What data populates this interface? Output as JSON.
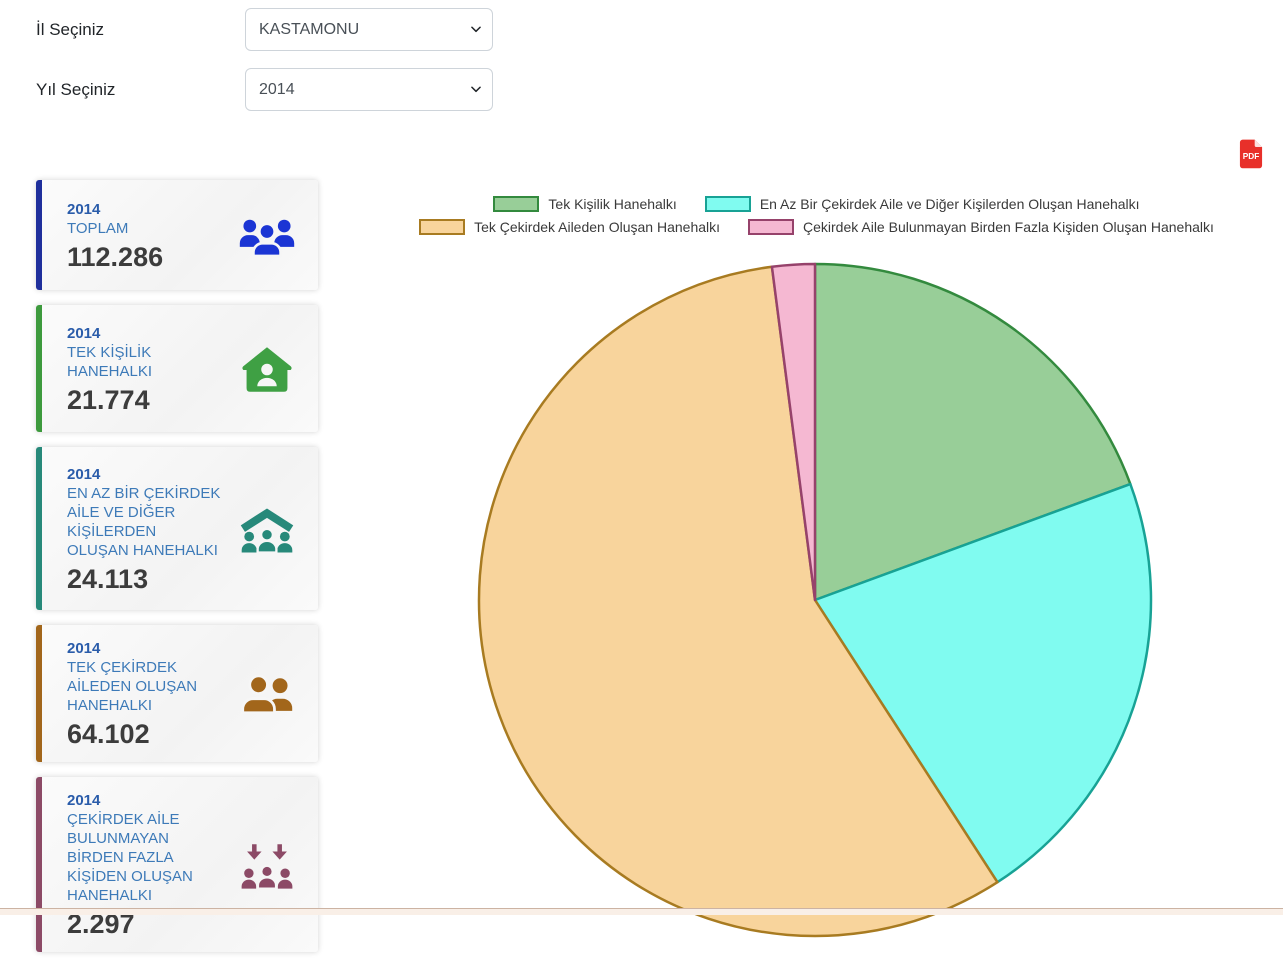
{
  "filters": {
    "province_label": "İl Seçiniz",
    "province_value": "KASTAMONU",
    "year_label": "Yıl Seçiniz",
    "year_value": "2014"
  },
  "pdf_button": {
    "label": "PDF",
    "color": "#e8302a"
  },
  "cards": [
    {
      "year": "2014",
      "title": "TOPLAM",
      "value": "112.286",
      "accent": "#1f2f9c",
      "icon_color": "#1b35d4",
      "icon": "people-group-icon"
    },
    {
      "year": "2014",
      "title": "TEK KİŞİLİK HANEHALKI",
      "value": "21.774",
      "accent": "#3d9a3d",
      "icon_color": "#3fa044",
      "icon": "house-person-icon"
    },
    {
      "year": "2014",
      "title": "EN AZ BİR ÇEKİRDEK AİLE VE DİĞER KİŞİLERDEN OLUŞAN HANEHALKI",
      "value": "24.113",
      "accent": "#27897a",
      "icon_color": "#27897a",
      "icon": "family-roof-icon"
    },
    {
      "year": "2014",
      "title": "TEK ÇEKİRDEK AİLEDEN OLUŞAN HANEHALKI",
      "value": "64.102",
      "accent": "#a2661b",
      "icon_color": "#a2661b",
      "icon": "two-people-icon"
    },
    {
      "year": "2014",
      "title": "ÇEKİRDEK AİLE BULUNMAYAN BİRDEN FAZLA KİŞİDEN OLUŞAN HANEHALKI",
      "value": "2.297",
      "accent": "#8c4a66",
      "icon_color": "#8c4a66",
      "icon": "crowd-arrows-icon"
    }
  ],
  "chart_data": {
    "type": "pie",
    "title": "",
    "start_angle": "12-o-clock",
    "direction": "clockwise",
    "legend_position": "top",
    "legend_rows": [
      [
        0,
        1
      ],
      [
        2,
        3
      ]
    ],
    "total": 112286,
    "series": [
      {
        "label": "Tek Kişilik Hanehalkı",
        "value": 21774,
        "percent": 19.4,
        "fill": "#98ce98",
        "border": "#338a3e"
      },
      {
        "label": "En Az Bir Çekirdek Aile ve Diğer Kişilerden Oluşan Hanehalkı",
        "value": 24113,
        "percent": 21.5,
        "fill": "#80fbf0",
        "border": "#18a295"
      },
      {
        "label": "Tek Çekirdek Aileden Oluşan Hanehalkı",
        "value": 64102,
        "percent": 57.1,
        "fill": "#f8d49c",
        "border": "#a87b21"
      },
      {
        "label": "Çekirdek Aile Bulunmayan Birden Fazla Kişiden Oluşan Hanehalkı",
        "value": 2297,
        "percent": 2.0,
        "fill": "#f5b8d2",
        "border": "#96426b"
      }
    ]
  }
}
